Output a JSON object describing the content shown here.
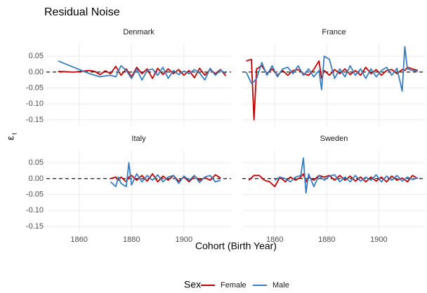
{
  "title": "Residual Noise",
  "x_label": "Cohort (Birth Year)",
  "y_label": "ε",
  "y_label_subscript": "t",
  "legend_title": "Sex",
  "chart_data": [
    {
      "type": "line",
      "title": "Denmark",
      "x": [
        1852,
        1858,
        1864,
        1866,
        1868,
        1870,
        1872,
        1874,
        1876,
        1878,
        1880,
        1882,
        1884,
        1886,
        1888,
        1890,
        1892,
        1894,
        1896,
        1898,
        1900,
        1902,
        1904,
        1906,
        1908,
        1910,
        1912,
        1914,
        1916
      ],
      "series": [
        {
          "name": "Female",
          "color": "#c00000",
          "values": [
            0.002,
            0,
            0.005,
            0.002,
            -0.008,
            0.004,
            -0.005,
            0.018,
            -0.01,
            0.01,
            -0.015,
            0.015,
            -0.005,
            0.01,
            -0.02,
            0.012,
            -0.008,
            0.01,
            -0.005,
            0.008,
            -0.01,
            0.005,
            -0.018,
            0.012,
            -0.01,
            0.008,
            -0.005,
            0.008,
            -0.012
          ]
        },
        {
          "name": "Male",
          "color": "#3a7dbf",
          "values": [
            0.035,
            0.015,
            -0.005,
            -0.01,
            -0.015,
            -0.012,
            -0.01,
            -0.015,
            0.02,
            0.005,
            -0.02,
            0.01,
            -0.025,
            0.005,
            0.01,
            -0.01,
            0.015,
            -0.02,
            0.005,
            -0.008,
            0.003,
            -0.005,
            0.008,
            -0.003,
            -0.025,
            0.012,
            -0.01,
            0.006,
            -0.004
          ]
        }
      ],
      "xlim": [
        1847.5,
        1918
      ],
      "ylim": [
        -0.17,
        0.09
      ],
      "xticks": [
        1860,
        1880,
        1900
      ],
      "yticks": [
        0.05,
        {
          "value": 0,
          "label": "0.00"
        },
        -0.05,
        {
          "value": -0.1,
          "label": "-0.10"
        },
        -0.15
      ],
      "grid": true,
      "reference_line": 0
    },
    {
      "type": "line",
      "title": "France",
      "x": [
        1849,
        1851,
        1852,
        1853,
        1855,
        1857,
        1859,
        1861,
        1863,
        1865,
        1867,
        1869,
        1871,
        1873,
        1875,
        1877,
        1878,
        1879,
        1881,
        1883,
        1885,
        1887,
        1889,
        1891,
        1893,
        1895,
        1897,
        1899,
        1901,
        1903,
        1905,
        1907,
        1909,
        1910,
        1911,
        1913,
        1915
      ],
      "series": [
        {
          "name": "Female",
          "color": "#c00000",
          "values": [
            0.035,
            0.04,
            -0.15,
            0.01,
            0.02,
            -0.005,
            0.01,
            -0.01,
            0.005,
            -0.01,
            0.005,
            0.008,
            -0.005,
            -0.01,
            0.008,
            0.035,
            -0.02,
            0.005,
            -0.01,
            0.008,
            -0.005,
            0.01,
            -0.008,
            0.005,
            -0.01,
            0.015,
            -0.005,
            0.008,
            -0.01,
            0.005,
            0.008,
            -0.005,
            0.008,
            0.005,
            0.015,
            0.01,
            0.005
          ]
        },
        {
          "name": "Male",
          "color": "#3a7dbf",
          "values": [
            0,
            -0.035,
            -0.03,
            -0.02,
            0.03,
            -0.01,
            0.02,
            -0.015,
            0.01,
            0.015,
            -0.005,
            0.02,
            -0.01,
            0.01,
            -0.015,
            0.005,
            -0.055,
            0.05,
            0.04,
            -0.02,
            0.01,
            -0.015,
            0.02,
            -0.01,
            0.01,
            -0.02,
            0.01,
            -0.015,
            0.005,
            0.015,
            -0.01,
            0.012,
            -0.06,
            0.08,
            0.01,
            0.005,
            0.003
          ]
        }
      ],
      "xlim": [
        1847.5,
        1918
      ],
      "ylim": [
        -0.17,
        0.09
      ],
      "xticks": [
        1860,
        1880,
        1900
      ],
      "yticks": [
        0.05,
        {
          "value": 0,
          "label": "0.00"
        },
        -0.05,
        {
          "value": -0.1,
          "label": "-0.10"
        },
        -0.15
      ],
      "grid": true,
      "reference_line": 0
    },
    {
      "type": "line",
      "title": "Italy",
      "x": [
        1872,
        1874,
        1875,
        1876,
        1878,
        1879,
        1880,
        1882,
        1884,
        1886,
        1888,
        1890,
        1892,
        1894,
        1896,
        1898,
        1900,
        1902,
        1904,
        1906,
        1908,
        1910,
        1912,
        1914
      ],
      "series": [
        {
          "name": "Female",
          "color": "#c00000",
          "values": [
            0,
            0.005,
            -0.005,
            0.005,
            -0.01,
            0.005,
            0.01,
            -0.005,
            0.01,
            -0.008,
            0.015,
            -0.01,
            0.008,
            -0.005,
            0.01,
            -0.008,
            0.005,
            -0.01,
            0.008,
            -0.005,
            0.003,
            -0.005,
            0.012,
            0.002
          ]
        },
        {
          "name": "Male",
          "color": "#3a7dbf",
          "values": [
            -0.01,
            -0.025,
            0.005,
            -0.015,
            -0.025,
            0.05,
            -0.02,
            0.015,
            -0.01,
            0.01,
            -0.005,
            0.012,
            -0.01,
            0.005,
            0.01,
            -0.015,
            0.008,
            -0.005,
            0.01,
            -0.012,
            0.005,
            0.01,
            -0.01,
            -0.005
          ]
        }
      ],
      "xlim": [
        1847.5,
        1918
      ],
      "ylim": [
        -0.17,
        0.09
      ],
      "xticks": [
        1860,
        1880,
        1900
      ],
      "yticks": [
        0.05,
        {
          "value": 0,
          "label": "0.00"
        },
        -0.05,
        {
          "value": -0.1,
          "label": "-0.10"
        },
        -0.15
      ],
      "grid": true,
      "reference_line": 0
    },
    {
      "type": "line",
      "title": "Sweden",
      "x": [
        1850,
        1852,
        1854,
        1856,
        1858,
        1860,
        1862,
        1864,
        1866,
        1868,
        1870,
        1871,
        1872,
        1873,
        1875,
        1877,
        1879,
        1881,
        1883,
        1885,
        1887,
        1889,
        1891,
        1893,
        1895,
        1897,
        1899,
        1901,
        1903,
        1905,
        1907,
        1909,
        1911,
        1913,
        1915
      ],
      "series": [
        {
          "name": "Female",
          "color": "#c00000",
          "values": [
            -0.005,
            0.01,
            0.01,
            -0.005,
            -0.01,
            -0.025,
            0.005,
            -0.01,
            0.005,
            -0.005,
            0.005,
            0.015,
            -0.01,
            0.005,
            -0.005,
            0.01,
            0.005,
            0.01,
            -0.005,
            0.01,
            -0.005,
            0.008,
            -0.008,
            0.005,
            -0.01,
            0.005,
            -0.008,
            0.005,
            -0.01,
            0.008,
            -0.005,
            0.002,
            -0.01,
            0.01,
            0
          ]
        },
        {
          "name": "Male",
          "color": "#3a7dbf",
          "values": [
            null,
            null,
            null,
            null,
            null,
            -0.005,
            0.005,
            0,
            -0.01,
            0.005,
            0.01,
            0.065,
            -0.045,
            0.015,
            -0.025,
            0.01,
            -0.005,
            0.008,
            0.012,
            -0.01,
            0.005,
            -0.01,
            0.01,
            -0.008,
            0.005,
            -0.005,
            0.012,
            -0.01,
            0.008,
            -0.005,
            0.01,
            -0.008,
            0.005,
            -0.003,
            0.003
          ]
        }
      ],
      "xlim": [
        1847.5,
        1918
      ],
      "ylim": [
        -0.17,
        0.09
      ],
      "xticks": [
        1860,
        1880,
        1900
      ],
      "yticks": [
        0.05,
        {
          "value": 0,
          "label": "0.00"
        },
        -0.05,
        {
          "value": -0.1,
          "label": "-0.10"
        },
        -0.15
      ],
      "grid": true,
      "reference_line": 0
    }
  ]
}
